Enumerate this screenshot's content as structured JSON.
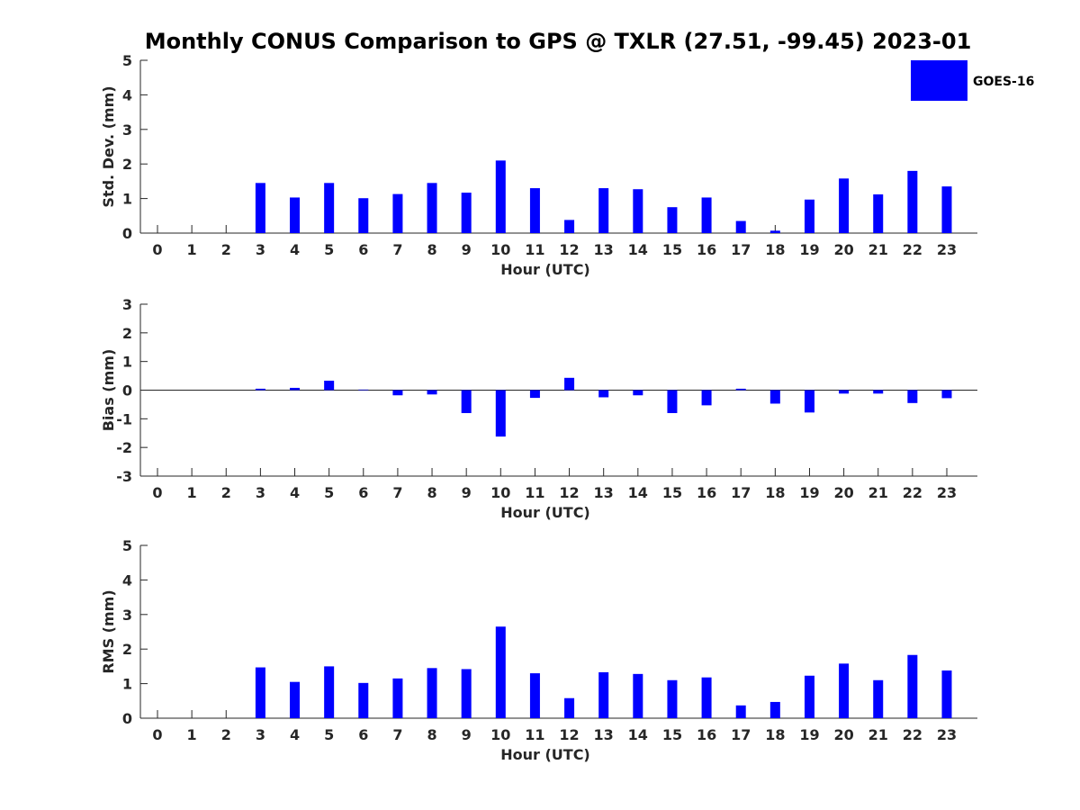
{
  "title": "Monthly CONUS Comparison to GPS @ TXLR (27.51, -99.45) 2023-01",
  "chart_data": [
    {
      "type": "bar",
      "id": "std",
      "categories": [
        "0",
        "1",
        "2",
        "3",
        "4",
        "5",
        "6",
        "7",
        "8",
        "9",
        "10",
        "11",
        "12",
        "13",
        "14",
        "15",
        "16",
        "17",
        "18",
        "19",
        "20",
        "21",
        "22",
        "23"
      ],
      "series": [
        {
          "name": "GOES-16",
          "color": "#0000ff",
          "values": [
            null,
            null,
            null,
            1.45,
            1.03,
            1.45,
            1.01,
            1.13,
            1.45,
            1.17,
            2.1,
            1.3,
            0.38,
            1.3,
            1.27,
            0.75,
            1.03,
            0.35,
            0.07,
            0.97,
            1.58,
            1.12,
            1.8,
            1.35
          ]
        }
      ],
      "xlabel": "Hour (UTC)",
      "ylabel": "Std. Dev. (mm)",
      "ylim": [
        0,
        5
      ],
      "yticks": [
        "0",
        "1",
        "2",
        "3",
        "4",
        "5"
      ],
      "grid": false,
      "legend": {
        "position": "top-right",
        "entries": [
          "GOES-16"
        ]
      }
    },
    {
      "type": "bar",
      "id": "bias",
      "categories": [
        "0",
        "1",
        "2",
        "3",
        "4",
        "5",
        "6",
        "7",
        "8",
        "9",
        "10",
        "11",
        "12",
        "13",
        "14",
        "15",
        "16",
        "17",
        "18",
        "19",
        "20",
        "21",
        "22",
        "23"
      ],
      "series": [
        {
          "name": "GOES-16",
          "color": "#0000ff",
          "values": [
            null,
            null,
            null,
            0.05,
            0.08,
            0.33,
            0.02,
            -0.18,
            -0.15,
            -0.8,
            -1.62,
            -0.27,
            0.43,
            -0.25,
            -0.18,
            -0.8,
            -0.53,
            0.05,
            -0.47,
            -0.78,
            -0.12,
            -0.12,
            -0.45,
            -0.28
          ]
        }
      ],
      "xlabel": "Hour (UTC)",
      "ylabel": "Bias (mm)",
      "ylim": [
        -3,
        3
      ],
      "yticks": [
        "-3",
        "-2",
        "-1",
        "0",
        "1",
        "2",
        "3"
      ],
      "grid": false
    },
    {
      "type": "bar",
      "id": "rms",
      "categories": [
        "0",
        "1",
        "2",
        "3",
        "4",
        "5",
        "6",
        "7",
        "8",
        "9",
        "10",
        "11",
        "12",
        "13",
        "14",
        "15",
        "16",
        "17",
        "18",
        "19",
        "20",
        "21",
        "22",
        "23"
      ],
      "series": [
        {
          "name": "GOES-16",
          "color": "#0000ff",
          "values": [
            null,
            null,
            null,
            1.47,
            1.05,
            1.5,
            1.02,
            1.15,
            1.45,
            1.42,
            2.65,
            1.3,
            0.58,
            1.33,
            1.28,
            1.1,
            1.18,
            0.37,
            0.47,
            1.23,
            1.58,
            1.1,
            1.83,
            1.38
          ]
        }
      ],
      "xlabel": "Hour (UTC)",
      "ylabel": "RMS (mm)",
      "ylim": [
        0,
        5
      ],
      "yticks": [
        "0",
        "1",
        "2",
        "3",
        "4",
        "5"
      ],
      "grid": false
    }
  ]
}
